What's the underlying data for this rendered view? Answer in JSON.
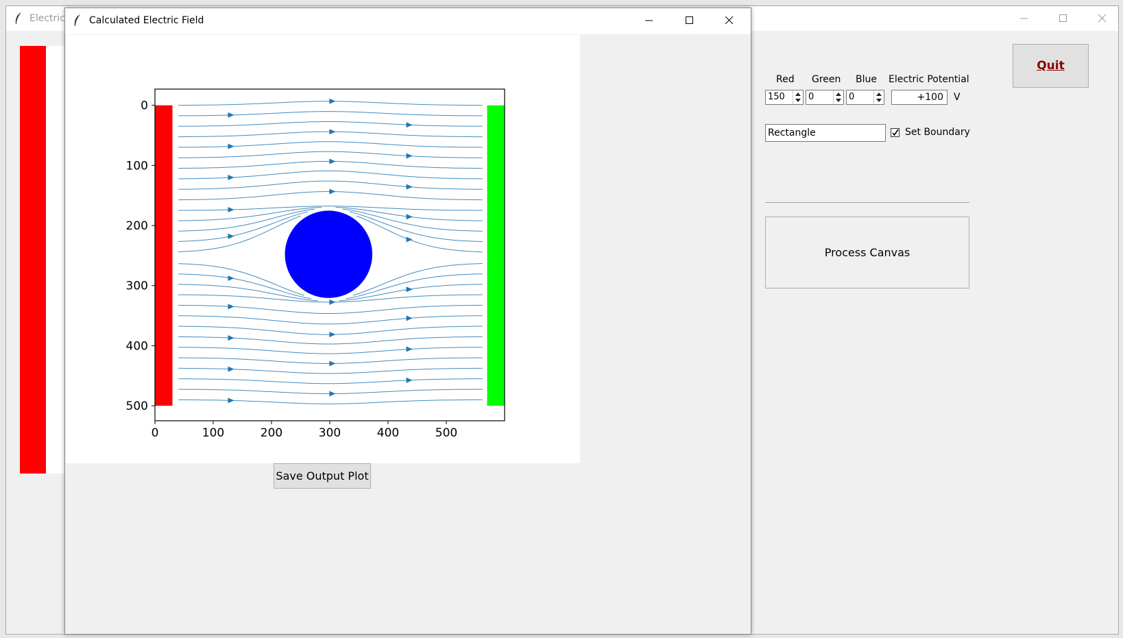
{
  "main_window": {
    "title": "Electric",
    "controls": {
      "labels": {
        "red": "Red",
        "green": "Green",
        "blue": "Blue",
        "potential": "Electric Potential"
      },
      "red_value": "150",
      "green_value": "0",
      "blue_value": "0",
      "potential_value": "+100",
      "unit": "V",
      "shape_value": "Rectangle",
      "set_boundary_label": "Set Boundary",
      "set_boundary_checked": true,
      "process_button": "Process Canvas",
      "quit_button": "Quit"
    }
  },
  "field_window": {
    "title": "Calculated Electric Field",
    "save_button": "Save Output Plot"
  },
  "colors": {
    "accent_red": "#ff0000",
    "accent_green": "#00ff00",
    "accent_blue": "#0000ff",
    "stream": "#1f77b4",
    "quit_text": "#8b0000"
  },
  "chart_data": {
    "type": "streamplot",
    "title": "",
    "xlabel": "",
    "ylabel": "",
    "xlim": [
      0,
      600
    ],
    "ylim": [
      525,
      -27
    ],
    "y_inverted": true,
    "x_ticks": [
      0,
      100,
      200,
      300,
      400,
      500
    ],
    "y_ticks": [
      0,
      100,
      200,
      300,
      400,
      500
    ],
    "tick_labels_x": [
      "0",
      "100",
      "200",
      "300",
      "400",
      "500"
    ],
    "tick_labels_y": [
      "0",
      "100",
      "200",
      "300",
      "400",
      "500"
    ],
    "electrodes": [
      {
        "name": "left plate",
        "color": "#ff0000",
        "x": [
          0,
          30
        ],
        "y": [
          0,
          500
        ]
      },
      {
        "name": "right plate",
        "color": "#00ff00",
        "x": [
          570,
          600
        ],
        "y": [
          0,
          500
        ]
      }
    ],
    "obstacle": {
      "shape": "circle",
      "color": "#0000ff",
      "center": [
        298,
        248
      ],
      "radius": 75
    },
    "stream_color": "#1f77b4",
    "stream_direction": "left-to-right",
    "grid": false
  }
}
